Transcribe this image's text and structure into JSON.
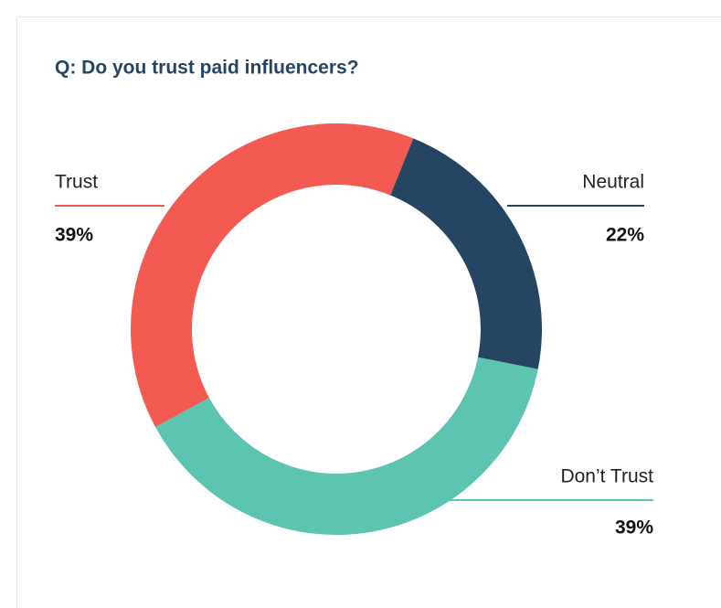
{
  "chart_data": {
    "type": "pie",
    "title": "Q: Do you trust paid influencers?",
    "categories": [
      "Trust",
      "Neutral",
      "Don’t Trust"
    ],
    "values": [
      39,
      22,
      39
    ],
    "value_labels": [
      "39%",
      "22%",
      "39%"
    ],
    "colors": [
      "#f25a52",
      "#264563",
      "#5cc4b0"
    ],
    "donut": true
  }
}
